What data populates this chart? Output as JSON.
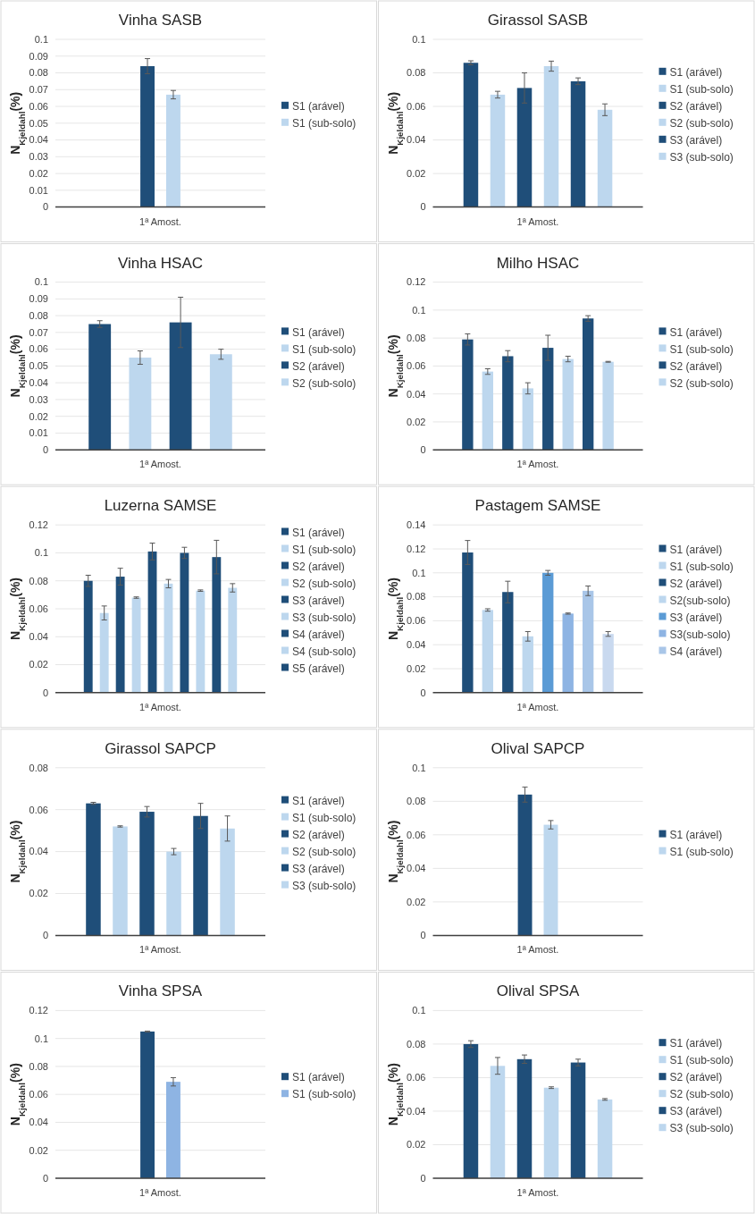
{
  "chart_data": [
    {
      "type": "bar",
      "title": "Vinha SASB",
      "ylabel": "N$_{Kjeldahl}$(%)",
      "categories": [
        "1ª Amost."
      ],
      "ylim": [
        0,
        0.1
      ],
      "yticks": [
        0,
        0.01,
        0.02,
        0.03,
        0.04,
        0.05,
        0.06,
        0.07,
        0.08,
        0.09,
        0.1
      ],
      "grid": "y",
      "legend": "right",
      "series": [
        {
          "name": "S1 (arável)",
          "color": "#1f4e79",
          "values": [
            0.084
          ],
          "errors": [
            0.0045
          ]
        },
        {
          "name": "S1 (sub-solo)",
          "color": "#bdd7ee",
          "values": [
            0.067
          ],
          "errors": [
            0.0025
          ]
        }
      ]
    },
    {
      "type": "bar",
      "title": "Girassol SASB",
      "ylabel": "N$_{Kjeldahl}$(%)",
      "categories": [
        "1ª Amost."
      ],
      "ylim": [
        0,
        0.1
      ],
      "yticks": [
        0,
        0.02,
        0.04,
        0.06,
        0.08,
        0.1
      ],
      "grid": "y",
      "legend": "right",
      "series": [
        {
          "name": "S1 (arável)",
          "color": "#1f4e79",
          "values": [
            0.086
          ],
          "errors": [
            0.0012
          ]
        },
        {
          "name": "S1 (sub-solo)",
          "color": "#bdd7ee",
          "values": [
            0.067
          ],
          "errors": [
            0.002
          ]
        },
        {
          "name": "S2 (arável)",
          "color": "#1f4e79",
          "values": [
            0.071
          ],
          "errors": [
            0.009
          ]
        },
        {
          "name": "S2 (sub-solo)",
          "color": "#bdd7ee",
          "values": [
            0.084
          ],
          "errors": [
            0.003
          ]
        },
        {
          "name": "S3 (arável)",
          "color": "#1f4e79",
          "values": [
            0.075
          ],
          "errors": [
            0.002
          ]
        },
        {
          "name": "S3 (sub-solo)",
          "color": "#bdd7ee",
          "values": [
            0.058
          ],
          "errors": [
            0.0035
          ]
        }
      ]
    },
    {
      "type": "bar",
      "title": "Vinha HSAC",
      "ylabel": "N$_{Kjeldahl}$(%)",
      "categories": [
        "1ª Amost."
      ],
      "ylim": [
        0,
        0.1
      ],
      "yticks": [
        0,
        0.01,
        0.02,
        0.03,
        0.04,
        0.05,
        0.06,
        0.07,
        0.08,
        0.09,
        0.1
      ],
      "grid": "y",
      "legend": "right",
      "series": [
        {
          "name": "S1 (arável)",
          "color": "#1f4e79",
          "values": [
            0.075
          ],
          "errors": [
            0.002
          ]
        },
        {
          "name": "S1 (sub-solo)",
          "color": "#bdd7ee",
          "values": [
            0.055
          ],
          "errors": [
            0.004
          ]
        },
        {
          "name": "S2 (arável)",
          "color": "#1f4e79",
          "values": [
            0.076
          ],
          "errors": [
            0.015
          ]
        },
        {
          "name": "S2 (sub-solo)",
          "color": "#bdd7ee",
          "values": [
            0.057
          ],
          "errors": [
            0.003
          ]
        }
      ]
    },
    {
      "type": "bar",
      "title": "Milho HSAC",
      "ylabel": "N$_{Kjeldahl}$(%)",
      "categories": [
        "1ª Amost."
      ],
      "ylim": [
        0,
        0.12
      ],
      "yticks": [
        0,
        0.02,
        0.04,
        0.06,
        0.08,
        0.1,
        0.12
      ],
      "grid": "y",
      "legend": "right",
      "series": [
        {
          "name": "S1 (arável)",
          "color": "#1f4e79",
          "values": [
            0.079
          ],
          "errors": [
            0.004
          ]
        },
        {
          "name": "S1 (sub-solo)",
          "color": "#bdd7ee",
          "values": [
            0.056
          ],
          "errors": [
            0.002
          ]
        },
        {
          "name": "S2 (arável)",
          "color": "#1f4e79",
          "values": [
            0.067
          ],
          "errors": [
            0.004
          ]
        },
        {
          "name": "S2 (sub-solo)",
          "color": "#bdd7ee",
          "values": [
            0.044
          ],
          "errors": [
            0.004
          ]
        },
        {
          "color": "#1f4e79",
          "values": [
            0.073
          ],
          "errors": [
            0.009
          ]
        },
        {
          "color": "#bdd7ee",
          "values": [
            0.065
          ],
          "errors": [
            0.002
          ]
        },
        {
          "color": "#1f4e79",
          "values": [
            0.094
          ],
          "errors": [
            0.002
          ]
        },
        {
          "color": "#bdd7ee",
          "values": [
            0.063
          ],
          "errors": [
            0.0003
          ]
        }
      ]
    },
    {
      "type": "bar",
      "title": "Luzerna SAMSE",
      "ylabel": "N$_{Kjeldahl}$(%)",
      "categories": [
        "1ª Amost."
      ],
      "ylim": [
        0,
        0.12
      ],
      "yticks": [
        0,
        0.02,
        0.04,
        0.06,
        0.08,
        0.1,
        0.12
      ],
      "grid": "y",
      "legend": "right",
      "series": [
        {
          "name": "S1 (arável)",
          "color": "#1f4e79",
          "values": [
            0.08
          ],
          "errors": [
            0.004
          ]
        },
        {
          "name": "S1 (sub-solo)",
          "color": "#bdd7ee",
          "values": [
            0.057
          ],
          "errors": [
            0.005
          ]
        },
        {
          "name": "S2 (arável)",
          "color": "#1f4e79",
          "values": [
            0.083
          ],
          "errors": [
            0.006
          ]
        },
        {
          "name": "S2 (sub-solo)",
          "color": "#bdd7ee",
          "values": [
            0.068
          ],
          "errors": [
            0.0005
          ]
        },
        {
          "name": "S3 (arável)",
          "color": "#1f4e79",
          "values": [
            0.101
          ],
          "errors": [
            0.006
          ]
        },
        {
          "name": "S3 (sub-solo)",
          "color": "#bdd7ee",
          "values": [
            0.078
          ],
          "errors": [
            0.003
          ]
        },
        {
          "name": "S4 (arável)",
          "color": "#1f4e79",
          "values": [
            0.1
          ],
          "errors": [
            0.004
          ]
        },
        {
          "name": "S4 (sub-solo)",
          "color": "#bdd7ee",
          "values": [
            0.073
          ],
          "errors": [
            0.0005
          ]
        },
        {
          "name": "S5 (arável)",
          "color": "#1f4e79",
          "values": [
            0.097
          ],
          "errors": [
            0.012
          ]
        },
        {
          "color": "#bdd7ee",
          "values": [
            0.075
          ],
          "errors": [
            0.003
          ]
        }
      ]
    },
    {
      "type": "bar",
      "title": "Pastagem SAMSE",
      "ylabel": "N$_{Kjeldahl}$(%)",
      "categories": [
        "1ª Amost."
      ],
      "ylim": [
        0,
        0.14
      ],
      "yticks": [
        0,
        0.02,
        0.04,
        0.06,
        0.08,
        0.1,
        0.12,
        0.14
      ],
      "grid": "y",
      "legend": "right",
      "series": [
        {
          "name": "S1 (arável)",
          "color": "#1f4e79",
          "values": [
            0.117
          ],
          "errors": [
            0.01
          ]
        },
        {
          "name": "S1 (sub-solo)",
          "color": "#bdd7ee",
          "values": [
            0.069
          ],
          "errors": [
            0.001
          ]
        },
        {
          "name": "S2 (arável)",
          "color": "#1f4e79",
          "values": [
            0.084
          ],
          "errors": [
            0.009
          ]
        },
        {
          "name": "S2(sub-solo)",
          "color": "#bdd7ee",
          "values": [
            0.047
          ],
          "errors": [
            0.004
          ]
        },
        {
          "name": "S3 (arável)",
          "color": "#5b9bd5",
          "values": [
            0.1
          ],
          "errors": [
            0.002
          ]
        },
        {
          "name": "S3(sub-solo)",
          "color": "#8eb4e3",
          "values": [
            0.066
          ],
          "errors": [
            0.0005
          ]
        },
        {
          "name": "S4 (arável)",
          "color": "#a9c6e8",
          "values": [
            0.085
          ],
          "errors": [
            0.004
          ]
        },
        {
          "color": "#c9d9ef",
          "values": [
            0.049
          ],
          "errors": [
            0.002
          ]
        }
      ]
    },
    {
      "type": "bar",
      "title": "Girassol SAPCP",
      "ylabel": "N$_{Kjeldahl}$(%)",
      "categories": [
        "1ª Amost."
      ],
      "ylim": [
        0,
        0.08
      ],
      "yticks": [
        0,
        0.02,
        0.04,
        0.06,
        0.08
      ],
      "grid": "y",
      "legend": "right",
      "series": [
        {
          "name": "S1 (arável)",
          "color": "#1f4e79",
          "values": [
            0.063
          ],
          "errors": [
            0.0005
          ]
        },
        {
          "name": "S1 (sub-solo)",
          "color": "#bdd7ee",
          "values": [
            0.052
          ],
          "errors": [
            0.0003
          ]
        },
        {
          "name": "S2 (arável)",
          "color": "#1f4e79",
          "values": [
            0.059
          ],
          "errors": [
            0.0025
          ]
        },
        {
          "name": "S2 (sub-solo)",
          "color": "#bdd7ee",
          "values": [
            0.04
          ],
          "errors": [
            0.0015
          ]
        },
        {
          "name": "S3 (arável)",
          "color": "#1f4e79",
          "values": [
            0.057
          ],
          "errors": [
            0.006
          ]
        },
        {
          "name": "S3 (sub-solo)",
          "color": "#bdd7ee",
          "values": [
            0.051
          ],
          "errors": [
            0.006
          ]
        }
      ]
    },
    {
      "type": "bar",
      "title": "Olival SAPCP",
      "ylabel": "N$_{Kjeldahl}$(%)",
      "categories": [
        "1ª Amost."
      ],
      "ylim": [
        0,
        0.1
      ],
      "yticks": [
        0,
        0.02,
        0.04,
        0.06,
        0.08,
        0.1
      ],
      "grid": "y",
      "legend": "right",
      "series": [
        {
          "name": "S1 (arável)",
          "color": "#1f4e79",
          "values": [
            0.084
          ],
          "errors": [
            0.0045
          ]
        },
        {
          "name": "S1 (sub-solo)",
          "color": "#bdd7ee",
          "values": [
            0.066
          ],
          "errors": [
            0.0025
          ]
        }
      ]
    },
    {
      "type": "bar",
      "title": "Vinha SPSA",
      "ylabel": "N$_{Kjeldahl}$(%)",
      "categories": [
        "1ª Amost."
      ],
      "ylim": [
        0,
        0.12
      ],
      "yticks": [
        0,
        0.02,
        0.04,
        0.06,
        0.08,
        0.1,
        0.12
      ],
      "grid": "y",
      "legend": "right",
      "series": [
        {
          "name": "S1 (arável)",
          "color": "#1f4e79",
          "values": [
            0.105
          ],
          "errors": [
            0.0003
          ]
        },
        {
          "name": "S1 (sub-solo)",
          "color": "#8eb4e3",
          "values": [
            0.069
          ],
          "errors": [
            0.003
          ]
        }
      ]
    },
    {
      "type": "bar",
      "title": "Olival SPSA",
      "ylabel": "N$_{Kjeldahl}$(%)",
      "categories": [
        "1ª Amost."
      ],
      "ylim": [
        0,
        0.1
      ],
      "yticks": [
        0,
        0.02,
        0.04,
        0.06,
        0.08,
        0.1
      ],
      "grid": "y",
      "legend": "right",
      "series": [
        {
          "name": "S1 (arável)",
          "color": "#1f4e79",
          "values": [
            0.08
          ],
          "errors": [
            0.002
          ]
        },
        {
          "name": "S1 (sub-solo)",
          "color": "#bdd7ee",
          "values": [
            0.067
          ],
          "errors": [
            0.005
          ]
        },
        {
          "name": "S2 (arável)",
          "color": "#1f4e79",
          "values": [
            0.071
          ],
          "errors": [
            0.0025
          ]
        },
        {
          "name": "S2 (sub-solo)",
          "color": "#bdd7ee",
          "values": [
            0.054
          ],
          "errors": [
            0.0005
          ]
        },
        {
          "name": "S3 (arável)",
          "color": "#1f4e79",
          "values": [
            0.069
          ],
          "errors": [
            0.002
          ]
        },
        {
          "name": "S3 (sub-solo)",
          "color": "#bdd7ee",
          "values": [
            0.047
          ],
          "errors": [
            0.0005
          ]
        }
      ]
    }
  ]
}
